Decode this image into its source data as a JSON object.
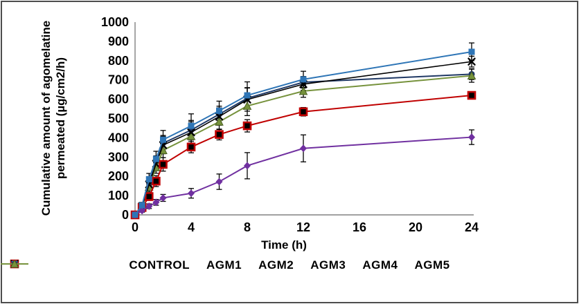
{
  "chart_data": {
    "type": "line",
    "title": "",
    "xlabel": "Time (h)",
    "ylabel": "Cumulative amount of agomelatine permeated (µg/cm2/h)",
    "ylabel_lines": [
      "Cumulative amount of agomelatine",
      "permeated (µg/cm2/h)"
    ],
    "x": [
      0,
      0.5,
      1,
      1.5,
      2,
      4,
      6,
      8,
      12,
      24
    ],
    "xticks": [
      0,
      4,
      8,
      12,
      16,
      20,
      24
    ],
    "xlim": [
      0,
      24
    ],
    "ylim": [
      0,
      1000
    ],
    "ytick_step": 100,
    "grid": false,
    "legend_position": "bottom",
    "error_bar_color": "#000000",
    "series": [
      {
        "name": "CONTROL",
        "color": "#7030A0",
        "marker": "diamond",
        "values": [
          0,
          22,
          45,
          65,
          88,
          112,
          172,
          255,
          345,
          403
        ],
        "errors": [
          0,
          8,
          12,
          15,
          18,
          25,
          40,
          68,
          70,
          38
        ]
      },
      {
        "name": "AGM1",
        "color": "#C00000",
        "marker": "square-dot",
        "values": [
          0,
          38,
          95,
          175,
          262,
          352,
          417,
          462,
          535,
          620
        ],
        "errors": [
          0,
          12,
          20,
          28,
          35,
          30,
          28,
          32,
          22,
          15
        ]
      },
      {
        "name": "AGM2",
        "color": "#000000",
        "marker": "x",
        "values": [
          0,
          45,
          158,
          265,
          362,
          428,
          510,
          598,
          678,
          795
        ],
        "errors": [
          0,
          15,
          28,
          35,
          45,
          55,
          45,
          60,
          32,
          28
        ]
      },
      {
        "name": "AGM3",
        "color": "#2E75B6",
        "marker": "square",
        "values": [
          0,
          50,
          185,
          290,
          390,
          462,
          540,
          620,
          703,
          846
        ],
        "errors": [
          0,
          15,
          30,
          40,
          48,
          62,
          50,
          70,
          42,
          46
        ]
      },
      {
        "name": "AGM4",
        "color": "#1F3864",
        "marker": "circle",
        "values": [
          0,
          44,
          168,
          274,
          372,
          440,
          522,
          605,
          688,
          730
        ],
        "errors": [
          0,
          12,
          25,
          32,
          40,
          50,
          42,
          55,
          30,
          28
        ]
      },
      {
        "name": "AGM5",
        "color": "#76923C",
        "marker": "triangle",
        "marker_border": "#4a5e23",
        "values": [
          0,
          40,
          145,
          246,
          335,
          408,
          483,
          565,
          642,
          722
        ],
        "errors": [
          0,
          12,
          24,
          30,
          38,
          45,
          40,
          50,
          32,
          34
        ]
      }
    ]
  }
}
